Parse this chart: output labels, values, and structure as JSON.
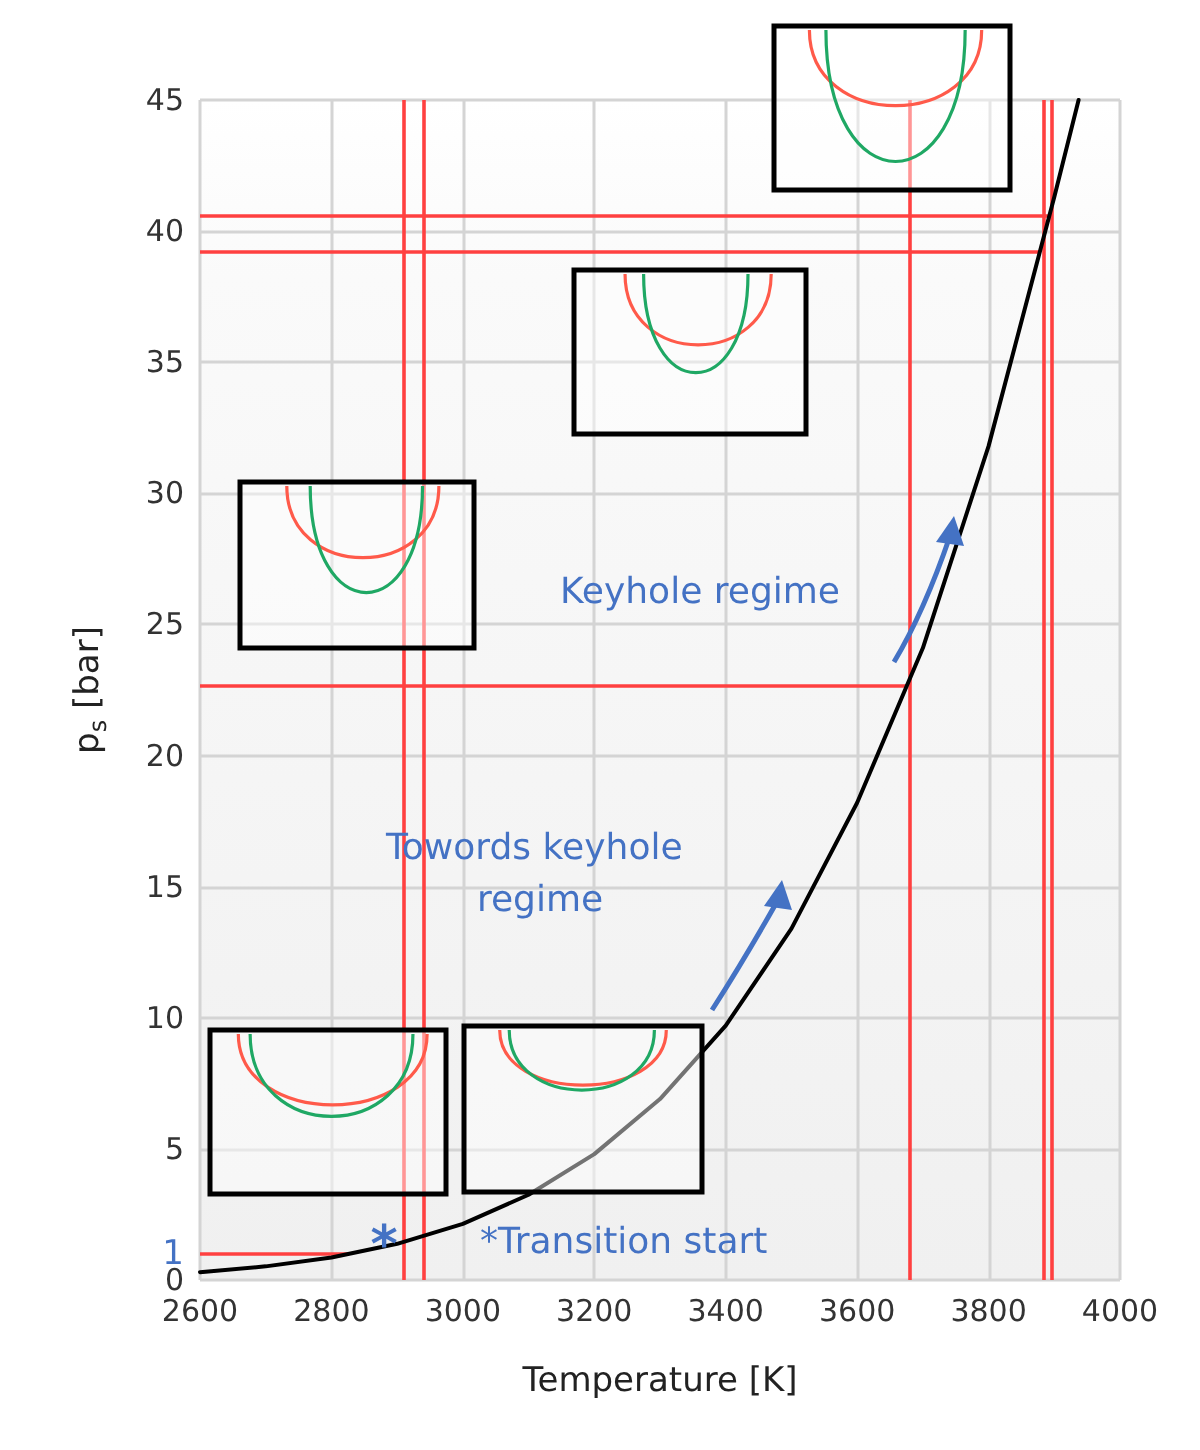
{
  "chart_data": {
    "type": "line",
    "xlabel": "Temperature [K]",
    "ylabel": "p$_{s}$ [bar]",
    "xlim": [
      2600,
      4000
    ],
    "xticks": [
      2600,
      2800,
      3000,
      3200,
      3400,
      3600,
      3800,
      4000
    ],
    "ylim": [
      0,
      45
    ],
    "yticks": [
      0,
      5,
      10,
      15,
      20,
      25,
      30,
      35,
      40,
      45
    ],
    "grid": true,
    "marker": "none",
    "series": [
      {
        "color": "#000000",
        "x": [
          2600,
          2700,
          2800,
          2900,
          3000,
          3100,
          3200,
          3300,
          3400,
          3500,
          3600,
          3700,
          3800,
          3900,
          3937
        ],
        "values": [
          0.3,
          0.52,
          0.86,
          1.38,
          2.14,
          3.25,
          4.8,
          6.9,
          9.7,
          13.4,
          18.2,
          24.1,
          31.8,
          41.3,
          45
        ]
      }
    ],
    "ref_lines": [
      {
        "axis": "y",
        "value": 1,
        "label": "1",
        "color": "#ff4040"
      },
      {
        "axis": "x",
        "value": 2910,
        "color": "#ff4040"
      },
      {
        "axis": "x",
        "value": 2940,
        "color": "#ff4040"
      },
      {
        "axis": "y",
        "value": 22.7,
        "color": "#ff4040"
      },
      {
        "axis": "x",
        "value": 3680,
        "color": "#ff4040"
      },
      {
        "axis": "y",
        "value": 39.2,
        "color": "#ff4040"
      },
      {
        "axis": "y",
        "value": 40.6,
        "color": "#ff4040"
      },
      {
        "axis": "x",
        "value": 3885,
        "color": "#ff4040"
      },
      {
        "axis": "x",
        "value": 3895,
        "color": "#ff4040"
      }
    ],
    "annotations": [
      "*Transition start",
      "Keyhole regime",
      "Towords keyhole regime",
      {
        "text": "*",
        "x": 2880,
        "y": 1.3
      }
    ]
  }
}
